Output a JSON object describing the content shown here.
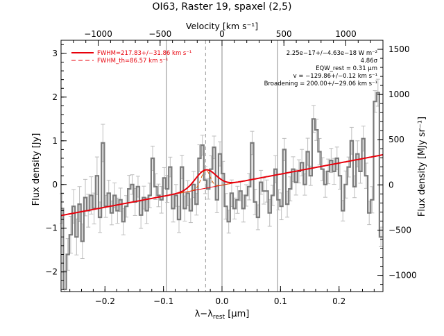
{
  "chart_data": {
    "type": "line",
    "title": "OI63, Raster 19, spaxel (2,5)",
    "xlabel": "λ−λ",
    "xlabel_sub": "rest",
    "xlabel_unit": " [μm]",
    "ylabel": "Flux density [Jy]",
    "ylabel_right": "Flux density [MJy sr⁻¹]",
    "top_axis_label": "Velocity [km s⁻¹]",
    "xlim": [
      -0.275,
      0.275
    ],
    "ylim": [
      -2.45,
      3.3
    ],
    "right_ylim": [
      -1180,
      1600
    ],
    "top_xlim": [
      -1300,
      1300
    ],
    "x_ticks": [
      -0.2,
      -0.1,
      0.0,
      0.1,
      0.2
    ],
    "x_tick_labels": [
      "−0.2",
      "−0.1",
      "0.0",
      "0.1",
      "0.2"
    ],
    "y_ticks": [
      -2,
      -1,
      0,
      1,
      2,
      3
    ],
    "y_tick_labels": [
      "−2",
      "−1",
      "0",
      "1",
      "2",
      "3"
    ],
    "right_ticks": [
      -1000,
      -500,
      0,
      500,
      1000,
      1500
    ],
    "right_tick_labels": [
      "−1000",
      "−500",
      "0",
      "500",
      "1000",
      "1500"
    ],
    "top_ticks": [
      -1000,
      -500,
      0,
      500,
      1000
    ],
    "top_tick_labels": [
      "−1000",
      "−500",
      "0",
      "500",
      "1000"
    ],
    "vertical_lines": [
      -0.095,
      0.0,
      0.095
    ],
    "line_center": -0.028,
    "legend": [
      {
        "label": "FWHM=217.83+/−31.86 km s⁻¹",
        "style": "solid",
        "color": "#e8000b"
      },
      {
        "label": "FWHM_th=86.57 km s⁻¹",
        "style": "dashed",
        "color": "#e8000b"
      }
    ],
    "annotations": [
      "2.25e−17+/−4.63e−18 W m⁻²",
      "4.86σ",
      "EQW_rest = 0.31 μm",
      "v = −129.86+/−0.12 km s⁻¹",
      "Broadening = 200.00+/−29.06 km s⁻¹"
    ],
    "fit": {
      "continuum": [
        [
          -0.275,
          -0.71
        ],
        [
          0.275,
          0.68
        ]
      ],
      "gaussian_amplitude": 0.42,
      "gaussian_sigma": 0.0175,
      "thermal_amplitude": 0.42,
      "thermal_sigma": 0.0075
    },
    "series": [
      {
        "style": "histogram",
        "x": [
          -0.2735,
          -0.2685,
          -0.2635,
          -0.2585,
          -0.2535,
          -0.2485,
          -0.2435,
          -0.2385,
          -0.2335,
          -0.2285,
          -0.2235,
          -0.2185,
          -0.2135,
          -0.2085,
          -0.2035,
          -0.1985,
          -0.1935,
          -0.1885,
          -0.1835,
          -0.1785,
          -0.1735,
          -0.1685,
          -0.1635,
          -0.1585,
          -0.1535,
          -0.1485,
          -0.1435,
          -0.1385,
          -0.1335,
          -0.1285,
          -0.1235,
          -0.1185,
          -0.1135,
          -0.1085,
          -0.1035,
          -0.0985,
          -0.0935,
          -0.0885,
          -0.0835,
          -0.0785,
          -0.0735,
          -0.0685,
          -0.0635,
          -0.0585,
          -0.0535,
          -0.0485,
          -0.0435,
          -0.0385,
          -0.0335,
          -0.0285,
          -0.0235,
          -0.0185,
          -0.0135,
          -0.0085,
          -0.0035,
          0.0015,
          0.0065,
          0.0115,
          0.0165,
          0.0215,
          0.0265,
          0.0315,
          0.0365,
          0.0415,
          0.0465,
          0.0515,
          0.0565,
          0.0615,
          0.0665,
          0.0715,
          0.0765,
          0.0815,
          0.0865,
          0.0915,
          0.0965,
          0.1015,
          0.1065,
          0.1115,
          0.1165,
          0.1215,
          0.1265,
          0.1315,
          0.1365,
          0.1415,
          0.1465,
          0.1515,
          0.1565,
          0.1615,
          0.1665,
          0.1715,
          0.1765,
          0.1815,
          0.1865,
          0.1915,
          0.1965,
          0.2015,
          0.2065,
          0.2115,
          0.2165,
          0.2215,
          0.2265,
          0.2315,
          0.2365,
          0.2415,
          0.2465,
          0.2515,
          0.2565,
          0.2615,
          0.2665,
          0.2715
        ],
        "y": [
          -0.55,
          -2.4,
          -1.6,
          -1.15,
          -0.5,
          -1.2,
          -0.45,
          -1.3,
          -0.3,
          -0.6,
          -0.25,
          -0.55,
          0.2,
          -0.75,
          0.95,
          -0.5,
          -0.2,
          -0.65,
          -0.25,
          -0.6,
          -0.35,
          -0.85,
          -0.5,
          -0.1,
          0.0,
          -0.4,
          -0.05,
          -0.7,
          -0.3,
          -0.6,
          -0.25,
          0.6,
          -0.05,
          -0.25,
          -0.35,
          0.15,
          -0.1,
          0.4,
          -0.55,
          -0.25,
          -0.8,
          0.4,
          -0.55,
          -0.2,
          -0.6,
          0.0,
          -0.45,
          0.6,
          0.9,
          0.1,
          -0.1,
          0.35,
          0.85,
          -0.35,
          0.7,
          0.25,
          -0.5,
          -0.85,
          -0.2,
          -0.55,
          -0.35,
          -0.15,
          -0.55,
          -0.25,
          -0.05,
          0.95,
          -0.4,
          -0.75,
          0.05,
          -0.15,
          -0.15,
          -0.65,
          -0.25,
          0.35,
          -0.35,
          -0.5,
          0.8,
          -0.45,
          -0.1,
          0.35,
          0.05,
          0.3,
          0.5,
          0.0,
          0.75,
          0.2,
          1.5,
          1.25,
          0.75,
          0.35,
          0.0,
          0.3,
          0.55,
          0.3,
          0.6,
          0.2,
          -0.6,
          0.0,
          0.4,
          1.0,
          -0.05,
          0.7,
          0.3,
          1.05,
          0.2,
          -0.65,
          -0.35,
          1.9,
          2.1,
          -1.2
        ]
      }
    ]
  }
}
